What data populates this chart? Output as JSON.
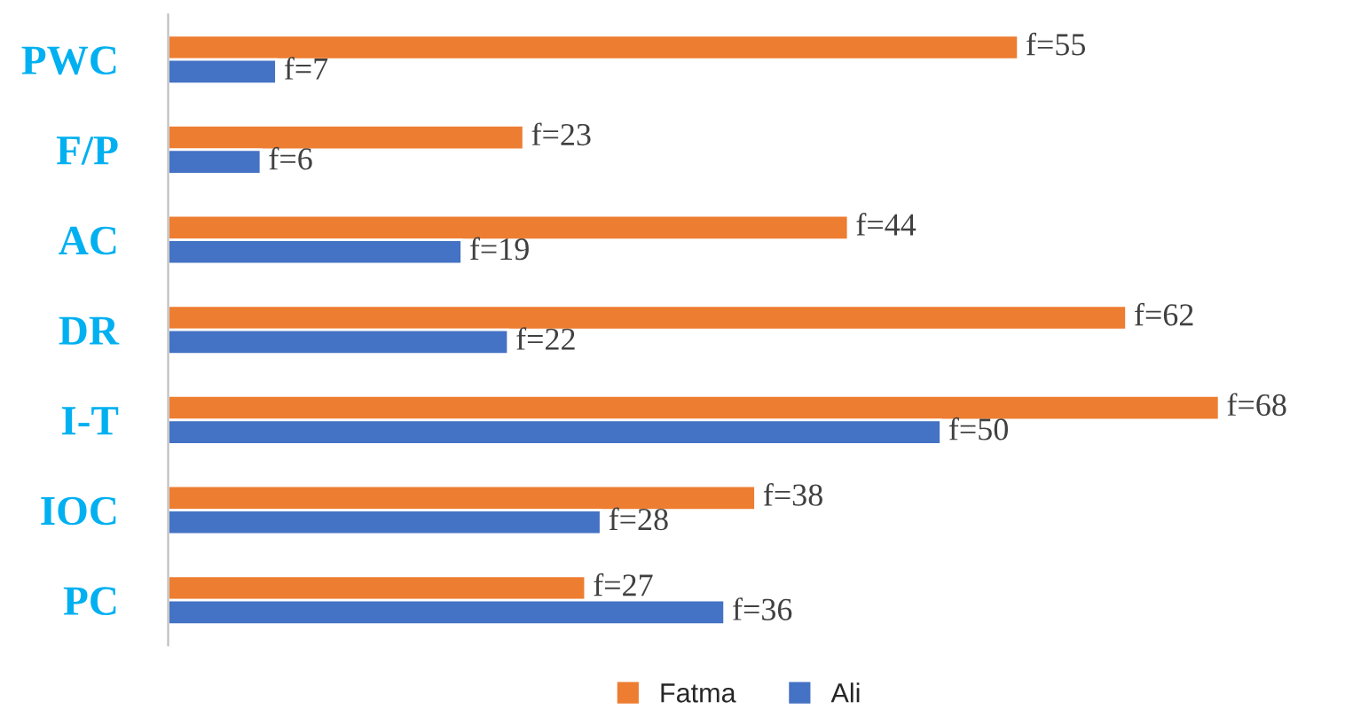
{
  "chart_data": {
    "type": "bar",
    "orientation": "horizontal",
    "categories": [
      "PWC",
      "F/P",
      "AC",
      "DR",
      "I-T",
      "IOC",
      "PC"
    ],
    "series": [
      {
        "name": "Fatma",
        "color": "#ed7d31",
        "values": [
          55,
          23,
          44,
          62,
          68,
          38,
          27
        ],
        "value_labels": [
          "f=55",
          "f=23",
          "f=44",
          "f=62",
          "f=68",
          "f=38",
          "f=27"
        ]
      },
      {
        "name": "Ali",
        "color": "#4472c4",
        "values": [
          7,
          6,
          19,
          22,
          50,
          28,
          36
        ],
        "value_labels": [
          "f=7",
          "f=6",
          "f=19",
          "f=22",
          "f=50",
          "f=28",
          "f=36"
        ]
      }
    ],
    "tick_labels": "y",
    "grid": false,
    "legend": "bottom"
  }
}
